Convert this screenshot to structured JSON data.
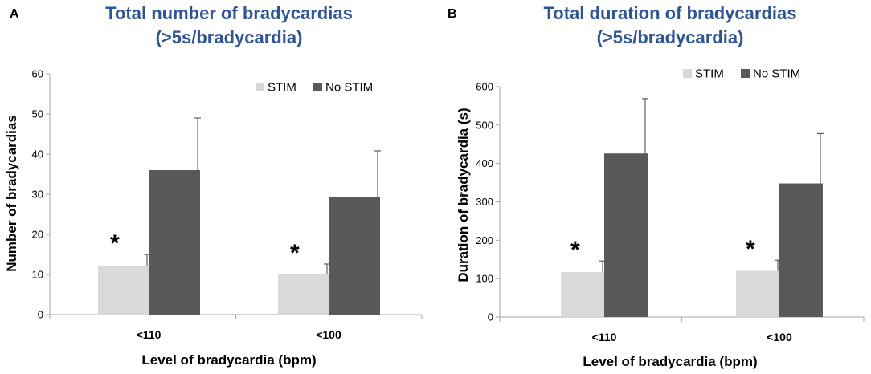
{
  "chart_data": [
    {
      "type": "bar",
      "panel": "A",
      "title_line1": "Total number of bradycardias",
      "title_line2": "(>5s/bradycardia)",
      "xlabel": "Level of bradycardia (bpm)",
      "ylabel": "Number of bradycardias",
      "categories": [
        "<110",
        "<100"
      ],
      "ylim": [
        0,
        60
      ],
      "yticks": [
        0,
        10,
        20,
        30,
        40,
        50,
        60
      ],
      "series": [
        {
          "name": "STIM",
          "color": "#d9d9d9",
          "values": [
            12,
            10
          ],
          "errors": [
            3,
            2.6
          ]
        },
        {
          "name": "No STIM",
          "color": "#595959",
          "values": [
            36,
            29.3
          ],
          "errors": [
            13,
            11.5
          ]
        }
      ],
      "significance": [
        "*",
        "*"
      ],
      "legend_position": "top-right"
    },
    {
      "type": "bar",
      "panel": "B",
      "title_line1": "Total duration of bradycardias",
      "title_line2": "(>5s/bradycardia)",
      "xlabel": "Level of bradycardia (bpm)",
      "ylabel": "Duration of bradycardia (s)",
      "categories": [
        "<110",
        "<100"
      ],
      "ylim": [
        0,
        600
      ],
      "yticks": [
        0,
        100,
        200,
        300,
        400,
        500,
        600
      ],
      "series": [
        {
          "name": "STIM",
          "color": "#d9d9d9",
          "values": [
            117,
            120
          ],
          "errors": [
            29,
            28
          ]
        },
        {
          "name": "No STIM",
          "color": "#595959",
          "values": [
            426,
            348
          ],
          "errors": [
            143,
            130
          ]
        }
      ],
      "significance": [
        "*",
        "*"
      ],
      "legend_position": "top-right"
    }
  ]
}
